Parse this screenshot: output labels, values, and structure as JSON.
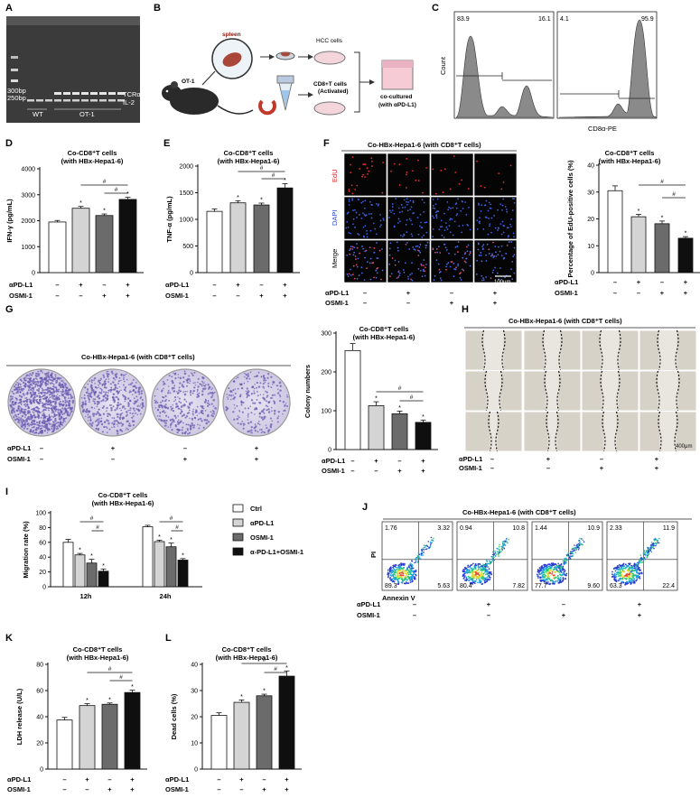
{
  "panel_letters": [
    "A",
    "B",
    "C",
    "D",
    "E",
    "F",
    "G",
    "H",
    "I",
    "J",
    "K",
    "L"
  ],
  "colors": {
    "ctrl": "#ffffff",
    "pdl1": "#d4d4d4",
    "osmi": "#6b6b6b",
    "combo": "#0f0f0f",
    "gel_bg": "#3c3c3c",
    "colony": "#6a5bb0",
    "flow_fill": "#8a8a8a"
  },
  "common": {
    "pdl1_label": "αPD-L1",
    "osmi_label": "OSMI-1",
    "minus": "–",
    "plus": "+",
    "sig_star": "*",
    "sig_hash": "#",
    "ccd8_title": "Co-CD8⁺T cells",
    "ccd8_sub": "(with HBx-Hepa1-6)",
    "co_hbx_title": "Co-HBx-Hepa1-6 (with CD8⁺T cells)"
  },
  "gel": {
    "marker_300": "300bp",
    "marker_250": "250bp",
    "tcr": "TCRα",
    "il2": "IL-2",
    "wt": "WT",
    "ot1": "OT-1"
  },
  "schematic": {
    "spleen": "spleen",
    "ot1": "OT-1",
    "hcc": "HCC cells",
    "cd8": "CD8+T cells",
    "activated": "(Activated)",
    "coculture": "co-cultured",
    "with": "(with αPD-L1)"
  },
  "flow_c": {
    "ylabel": "Count",
    "xlabel": "CD8α-PE",
    "left": {
      "neg": "83.9",
      "pos": "16.1"
    },
    "right": {
      "neg": "4.1",
      "pos": "95.9"
    }
  },
  "chart_data": [
    {
      "id": "D",
      "type": "bar",
      "ylabel": "IFN-γ (pg/mL)",
      "ylim": [
        0,
        4000
      ],
      "ticks": [
        0,
        1000,
        2000,
        3000,
        4000
      ],
      "values": [
        1950,
        2480,
        2200,
        2820
      ],
      "errors": [
        60,
        70,
        60,
        80
      ]
    },
    {
      "id": "E",
      "type": "bar",
      "ylabel": "TNF-α (pg/mL)",
      "ylim": [
        0,
        2000
      ],
      "ticks": [
        0,
        500,
        1000,
        1500,
        2000
      ],
      "values": [
        1150,
        1310,
        1270,
        1590
      ],
      "errors": [
        45,
        40,
        35,
        80
      ]
    },
    {
      "id": "F",
      "type": "bar",
      "ylabel": "Percentage of EdU-positive cells (%)",
      "ylim": [
        0,
        40
      ],
      "ticks": [
        0,
        10,
        20,
        30,
        40
      ],
      "values": [
        30.5,
        20.8,
        18.2,
        12.8
      ],
      "errors": [
        1.8,
        0.9,
        1.0,
        0.6
      ]
    },
    {
      "id": "G",
      "type": "bar",
      "ylabel": "Colony numbers",
      "ylim": [
        0,
        300
      ],
      "ticks": [
        0,
        100,
        200,
        300
      ],
      "values": [
        255,
        113,
        92,
        70
      ],
      "errors": [
        18,
        10,
        7,
        6
      ]
    },
    {
      "id": "K",
      "type": "bar",
      "ylabel": "LDH release (U/L)",
      "ylim": [
        0,
        80
      ],
      "ticks": [
        0,
        20,
        40,
        60,
        80
      ],
      "values": [
        37.5,
        48.5,
        49.5,
        58.5
      ],
      "errors": [
        2.0,
        1.5,
        1.0,
        1.8
      ]
    },
    {
      "id": "L",
      "type": "bar",
      "ylabel": "Dead cells (%)",
      "ylim": [
        0,
        40
      ],
      "ticks": [
        0,
        10,
        20,
        30,
        40
      ],
      "values": [
        20.5,
        25.5,
        28.0,
        35.5
      ],
      "errors": [
        1.0,
        0.9,
        0.6,
        2.0
      ]
    },
    {
      "id": "I",
      "type": "bar",
      "ylabel": "Migration rate (%)",
      "ylim": [
        0,
        100
      ],
      "ticks": [
        0,
        20,
        40,
        60,
        80,
        100
      ],
      "categories": [
        "12h",
        "24h"
      ],
      "series": [
        {
          "name": "Ctrl",
          "values": [
            60,
            81
          ],
          "errors": [
            4,
            2
          ]
        },
        {
          "name": "αPD-L1",
          "values": [
            43,
            61
          ],
          "errors": [
            2,
            2
          ]
        },
        {
          "name": "OSMI-1",
          "values": [
            32,
            54
          ],
          "errors": [
            5,
            5
          ]
        },
        {
          "name": "α-PD-L1+OSMI-1",
          "values": [
            21,
            36
          ],
          "errors": [
            3,
            2
          ]
        }
      ]
    }
  ],
  "panel_f": {
    "edu": "EdU",
    "dapi": "DAPI",
    "merge": "Merge",
    "scale": "100μm"
  },
  "panel_h": {
    "scale": "400μm"
  },
  "panel_j": {
    "pi": "PI",
    "annexin": "Annexin V",
    "quadrants": [
      {
        "ul": "1.76",
        "ur": "3.32",
        "ll": "89.3",
        "lr": "5.63"
      },
      {
        "ul": "0.94",
        "ur": "10.8",
        "ll": "80.4",
        "lr": "7.82"
      },
      {
        "ul": "1.44",
        "ur": "10.9",
        "ll": "77.7",
        "lr": "9.60"
      },
      {
        "ul": "2.33",
        "ur": "11.9",
        "ll": "63.3",
        "lr": "22.4"
      }
    ]
  }
}
